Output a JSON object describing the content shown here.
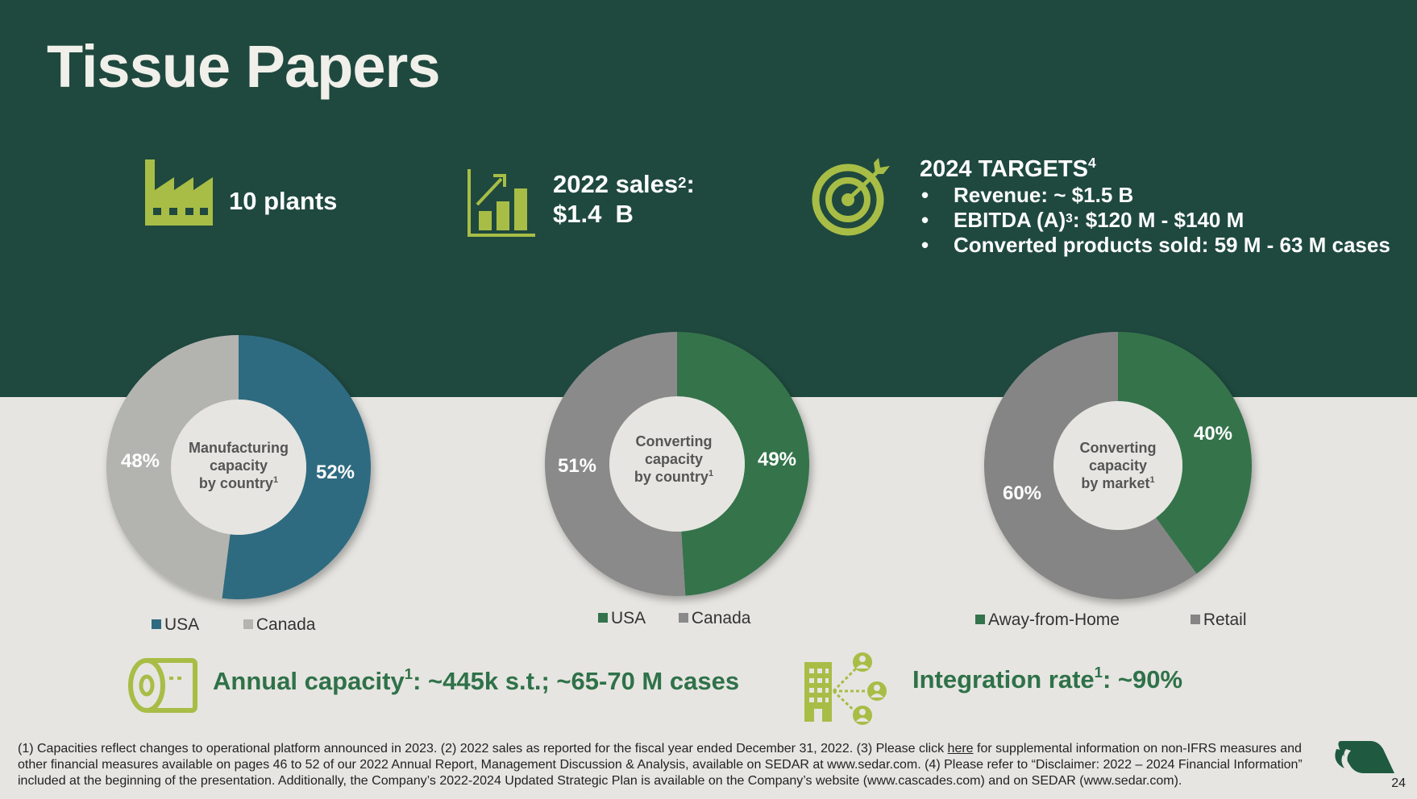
{
  "page": {
    "title": "Tissue Papers",
    "page_number": "24"
  },
  "kpis": {
    "plants": {
      "icon": "factory-icon",
      "text": "10 plants"
    },
    "sales": {
      "icon": "bar-growth-chart-icon",
      "label": "2022 sales",
      "sup": "2",
      "suffix": ":",
      "value": "$1.4  B"
    },
    "targets": {
      "icon": "target-arrow-icon",
      "heading": "2024 TARGETS",
      "heading_sup": "4",
      "items": [
        {
          "text": "Revenue: ~ $1.5 B"
        },
        {
          "pre": "EBITDA (A)",
          "sup": "3",
          "post": ": $120 M - $140 M"
        },
        {
          "text": "Converted products sold: 59 M - 63 M cases"
        }
      ]
    }
  },
  "chart_data": [
    {
      "type": "pie",
      "center_label": [
        "Manufacturing",
        "capacity",
        "by country"
      ],
      "center_sup": "1",
      "categories": [
        "USA",
        "Canada"
      ],
      "values": [
        52,
        48
      ],
      "value_labels": [
        "52%",
        "48%"
      ],
      "colors": [
        "#2e6b80",
        "#b3b4b0"
      ],
      "legend": [
        "USA",
        "Canada"
      ],
      "legend_position": "bottom"
    },
    {
      "type": "pie",
      "center_label": [
        "Converting",
        "capacity",
        "by country"
      ],
      "center_sup": "1",
      "categories": [
        "USA",
        "Canada"
      ],
      "values": [
        49,
        51
      ],
      "value_labels": [
        "49%",
        "51%"
      ],
      "colors": [
        "#34734c",
        "#8a8a8a"
      ],
      "legend": [
        "USA",
        "Canada"
      ],
      "legend_position": "bottom"
    },
    {
      "type": "pie",
      "center_label": [
        "Converting",
        "capacity",
        "by market"
      ],
      "center_sup": "1",
      "categories": [
        "Away-from-Home",
        "Retail"
      ],
      "values": [
        40,
        60
      ],
      "value_labels": [
        "40%",
        "60%"
      ],
      "colors": [
        "#34734c",
        "#858585"
      ],
      "legend": [
        "Away-from-Home",
        "Retail"
      ],
      "legend_position": "bottom"
    }
  ],
  "bottom": {
    "capacity": {
      "icon": "toilet-paper-roll-icon",
      "pre": "Annual capacity",
      "sup": "1",
      "post": ": ~445k s.t.; ~65-70 M cases"
    },
    "integration": {
      "icon": "building-network-icon",
      "pre": "Integration rate",
      "sup": "1",
      "post": ": ~90%"
    }
  },
  "footnote": {
    "part1": "(1) Capacities reflect changes to operational platform announced in 2023. (2) 2022 sales as reported for the fiscal year ended December 31, 2022. (3) Please click ",
    "link": "here",
    "part2": " for supplemental information on non-IFRS measures and other financial measures available on pages 46 to 52 of our 2022 Annual Report, Management Discussion & Analysis, available on SEDAR at www.sedar.com. (4) Please refer to “Disclaimer: 2022 – 2024 Financial Information” included at the beginning of the presentation. Additionally, the Company’s 2022-2024 Updated Strategic Plan is available on the Company’s website (www.cascades.com) and on SEDAR (www.sedar.com)."
  },
  "colors": {
    "top_band": "#1f493f",
    "icon_green": "#a8bd45",
    "accent_green": "#2f7148"
  }
}
